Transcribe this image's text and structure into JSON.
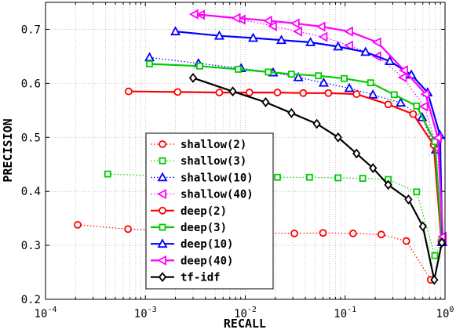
{
  "chart_data": {
    "type": "line",
    "xlabel": "RECALL",
    "ylabel": "PRECISION",
    "xscale": "log",
    "xlim": [
      0.0001,
      1
    ],
    "ylim": [
      0.2,
      0.75
    ],
    "grid": true,
    "legend_position": "center-left",
    "x_ticks": [
      {
        "value": 0.0001,
        "base": "10",
        "exp": "-4"
      },
      {
        "value": 0.001,
        "base": "10",
        "exp": "-3"
      },
      {
        "value": 0.01,
        "base": "10",
        "exp": "-2"
      },
      {
        "value": 0.1,
        "base": "10",
        "exp": "-1"
      },
      {
        "value": 1,
        "base": "10",
        "exp": "0"
      }
    ],
    "y_ticks": [
      {
        "value": 0.2,
        "label": "0.2"
      },
      {
        "value": 0.3,
        "label": "0.3"
      },
      {
        "value": 0.4,
        "label": "0.4"
      },
      {
        "value": 0.5,
        "label": "0.5"
      },
      {
        "value": 0.6,
        "label": "0.6"
      },
      {
        "value": 0.7,
        "label": "0.7"
      }
    ],
    "series": [
      {
        "name": "shallow(2)",
        "color": "#ff0000",
        "marker": "circle",
        "dash": "dotted",
        "x": [
          0.00021,
          0.00067,
          0.0021,
          0.0061,
          0.015,
          0.031,
          0.06,
          0.12,
          0.23,
          0.41,
          0.72
        ],
        "y": [
          0.338,
          0.33,
          0.326,
          0.324,
          0.323,
          0.322,
          0.323,
          0.322,
          0.32,
          0.308,
          0.236
        ]
      },
      {
        "name": "shallow(3)",
        "color": "#00cc00",
        "marker": "square",
        "dash": "dotted",
        "x": [
          0.00042,
          0.0012,
          0.0035,
          0.0095,
          0.021,
          0.044,
          0.085,
          0.15,
          0.27,
          0.52,
          0.79,
          0.92
        ],
        "y": [
          0.432,
          0.429,
          0.428,
          0.427,
          0.426,
          0.426,
          0.425,
          0.424,
          0.422,
          0.399,
          0.281,
          0.306
        ]
      },
      {
        "name": "shallow(10)",
        "color": "#0000ff",
        "marker": "triangle-up",
        "dash": "dotted",
        "x": [
          0.0011,
          0.0034,
          0.0091,
          0.019,
          0.034,
          0.061,
          0.11,
          0.19,
          0.36,
          0.59,
          0.81,
          0.93
        ],
        "y": [
          0.648,
          0.637,
          0.628,
          0.62,
          0.611,
          0.601,
          0.591,
          0.579,
          0.564,
          0.537,
          0.477,
          0.306
        ]
      },
      {
        "name": "shallow(40)",
        "color": "#ff00ff",
        "marker": "triangle-left",
        "dash": "dotted",
        "x": [
          0.0036,
          0.0092,
          0.019,
          0.034,
          0.061,
          0.11,
          0.21,
          0.38,
          0.62,
          0.84,
          0.95
        ],
        "y": [
          0.727,
          0.718,
          0.706,
          0.696,
          0.686,
          0.67,
          0.65,
          0.611,
          0.557,
          0.479,
          0.311
        ]
      },
      {
        "name": "deep(2)",
        "color": "#ff0000",
        "marker": "circle",
        "dash": "solid",
        "x": [
          0.00068,
          0.0021,
          0.0055,
          0.011,
          0.021,
          0.038,
          0.068,
          0.13,
          0.27,
          0.48,
          0.77,
          0.92
        ],
        "y": [
          0.585,
          0.584,
          0.583,
          0.583,
          0.583,
          0.582,
          0.582,
          0.58,
          0.561,
          0.543,
          0.486,
          0.307
        ]
      },
      {
        "name": "deep(3)",
        "color": "#00cc00",
        "marker": "square",
        "dash": "solid",
        "x": [
          0.0011,
          0.0035,
          0.0085,
          0.017,
          0.029,
          0.054,
          0.098,
          0.18,
          0.31,
          0.52,
          0.79,
          0.93
        ],
        "y": [
          0.636,
          0.632,
          0.626,
          0.621,
          0.617,
          0.614,
          0.609,
          0.601,
          0.579,
          0.558,
          0.492,
          0.306
        ]
      },
      {
        "name": "deep(10)",
        "color": "#0000ff",
        "marker": "triangle-up",
        "dash": "solid",
        "x": [
          0.002,
          0.0055,
          0.012,
          0.023,
          0.045,
          0.085,
          0.16,
          0.28,
          0.46,
          0.67,
          0.89,
          0.94
        ],
        "y": [
          0.696,
          0.688,
          0.684,
          0.68,
          0.676,
          0.668,
          0.658,
          0.641,
          0.616,
          0.583,
          0.504,
          0.306
        ]
      },
      {
        "name": "deep(40)",
        "color": "#ff00ff",
        "marker": "triangle-left",
        "dash": "solid",
        "x": [
          0.0031,
          0.0082,
          0.017,
          0.032,
          0.058,
          0.11,
          0.21,
          0.39,
          0.64,
          0.85,
          0.95
        ],
        "y": [
          0.728,
          0.721,
          0.716,
          0.711,
          0.705,
          0.696,
          0.676,
          0.624,
          0.58,
          0.499,
          0.316
        ]
      },
      {
        "name": "tf-idf",
        "color": "#000000",
        "marker": "diamond",
        "dash": "solid",
        "x": [
          0.003,
          0.0075,
          0.016,
          0.029,
          0.052,
          0.085,
          0.13,
          0.19,
          0.27,
          0.43,
          0.6,
          0.78,
          0.93
        ],
        "y": [
          0.61,
          0.585,
          0.565,
          0.545,
          0.525,
          0.5,
          0.47,
          0.443,
          0.412,
          0.385,
          0.335,
          0.236,
          0.305
        ]
      }
    ]
  }
}
